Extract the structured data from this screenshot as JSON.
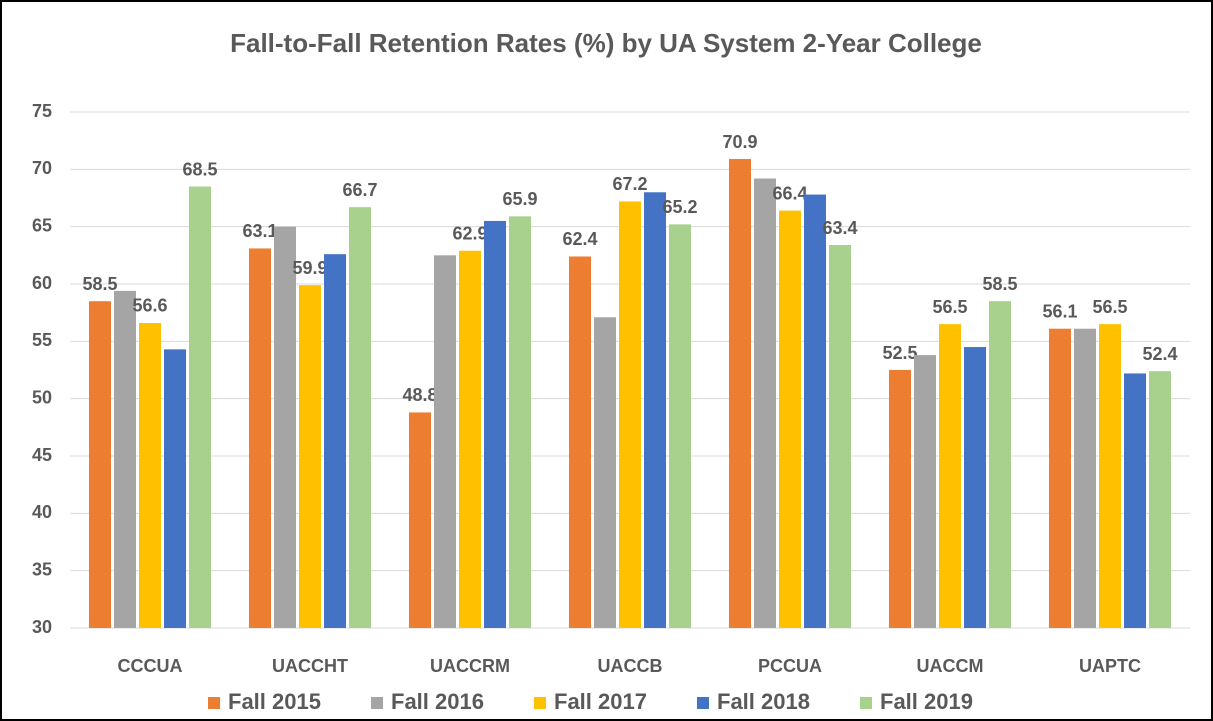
{
  "chart_data": {
    "type": "bar",
    "title": "Fall-to-Fall Retention Rates (%) by UA System 2-Year College",
    "categories": [
      "CCCUA",
      "UACCHT",
      "UACCRM",
      "UACCB",
      "PCCUA",
      "UACCM",
      "UAPTC"
    ],
    "series": [
      {
        "name": "Fall 2015",
        "color": "#ED7D31",
        "values": [
          58.5,
          63.1,
          48.8,
          62.4,
          70.9,
          52.5,
          56.1
        ],
        "value_labels": [
          "58.5",
          "63.1",
          "48.8",
          "62.4",
          "70.9",
          "52.5",
          "56.1"
        ]
      },
      {
        "name": "Fall 2016",
        "color": "#A5A5A5",
        "values": [
          59.4,
          65.0,
          62.5,
          57.1,
          69.2,
          53.8,
          56.1
        ],
        "value_labels": [
          null,
          null,
          null,
          null,
          null,
          null,
          null
        ]
      },
      {
        "name": "Fall 2017",
        "color": "#FFC000",
        "values": [
          56.6,
          59.9,
          62.9,
          67.2,
          66.4,
          56.5,
          56.5
        ],
        "value_labels": [
          "56.6",
          "59.9",
          "62.9",
          "67.2",
          "66.4",
          "56.5",
          "56.5"
        ]
      },
      {
        "name": "Fall 2018",
        "color": "#4472C4",
        "values": [
          54.3,
          62.6,
          65.5,
          68.0,
          67.8,
          54.5,
          52.2
        ],
        "value_labels": [
          null,
          null,
          null,
          null,
          null,
          null,
          null
        ]
      },
      {
        "name": "Fall 2019",
        "color": "#A9D18E",
        "values": [
          68.5,
          66.7,
          65.9,
          65.2,
          63.4,
          58.5,
          52.4
        ],
        "value_labels": [
          "68.5",
          "66.7",
          "65.9",
          "65.2",
          "63.4",
          "58.5",
          "52.4"
        ]
      }
    ],
    "ylim": [
      30,
      75
    ],
    "yticks": [
      30,
      35,
      40,
      45,
      50,
      55,
      60,
      65,
      70,
      75
    ],
    "grid": true,
    "legend": "bottom"
  }
}
